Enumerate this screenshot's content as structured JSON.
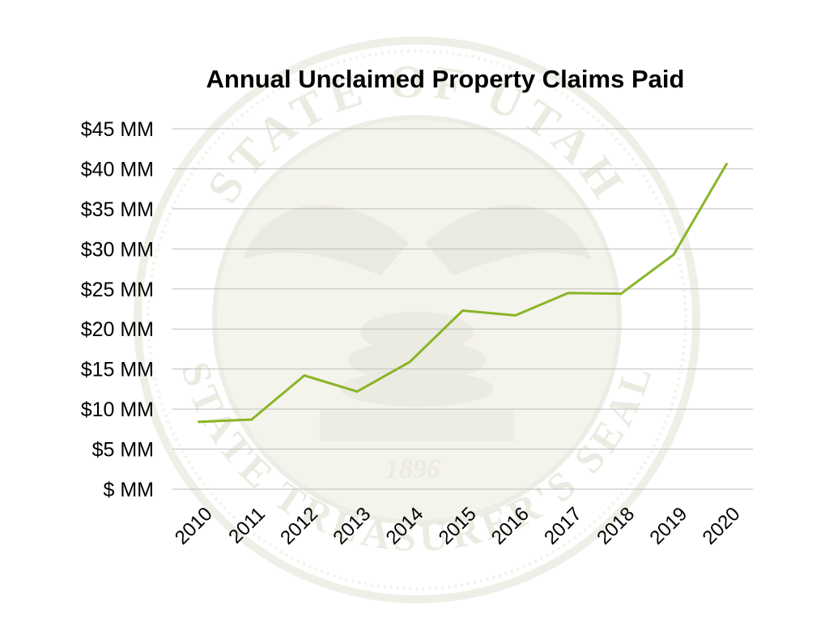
{
  "chart_data": {
    "type": "line",
    "title": "Annual Unclaimed Property Claims Paid",
    "xlabel": "",
    "ylabel": "",
    "categories": [
      "2010",
      "2011",
      "2012",
      "2013",
      "2014",
      "2015",
      "2016",
      "2017",
      "2018",
      "2019",
      "2020"
    ],
    "values": [
      8.4,
      8.7,
      14.2,
      12.2,
      15.9,
      22.3,
      21.7,
      24.5,
      24.4,
      29.3,
      40.6
    ],
    "y_ticks": [
      0,
      5,
      10,
      15,
      20,
      25,
      30,
      35,
      40,
      45
    ],
    "y_tick_labels": [
      "$ MM",
      "$5 MM",
      "$10 MM",
      "$15 MM",
      "$20 MM",
      "$25 MM",
      "$30 MM",
      "$35 MM",
      "$40 MM",
      "$45 MM"
    ],
    "ylim": [
      0,
      45
    ],
    "grid": true,
    "legend": "none",
    "line_color": "#8ab526",
    "grid_color": "#bfbfbf"
  },
  "watermark": {
    "top_text": "STATE OF UTAH",
    "bottom_text": "STATE TREASURER'S SEAL",
    "year": "1896"
  }
}
